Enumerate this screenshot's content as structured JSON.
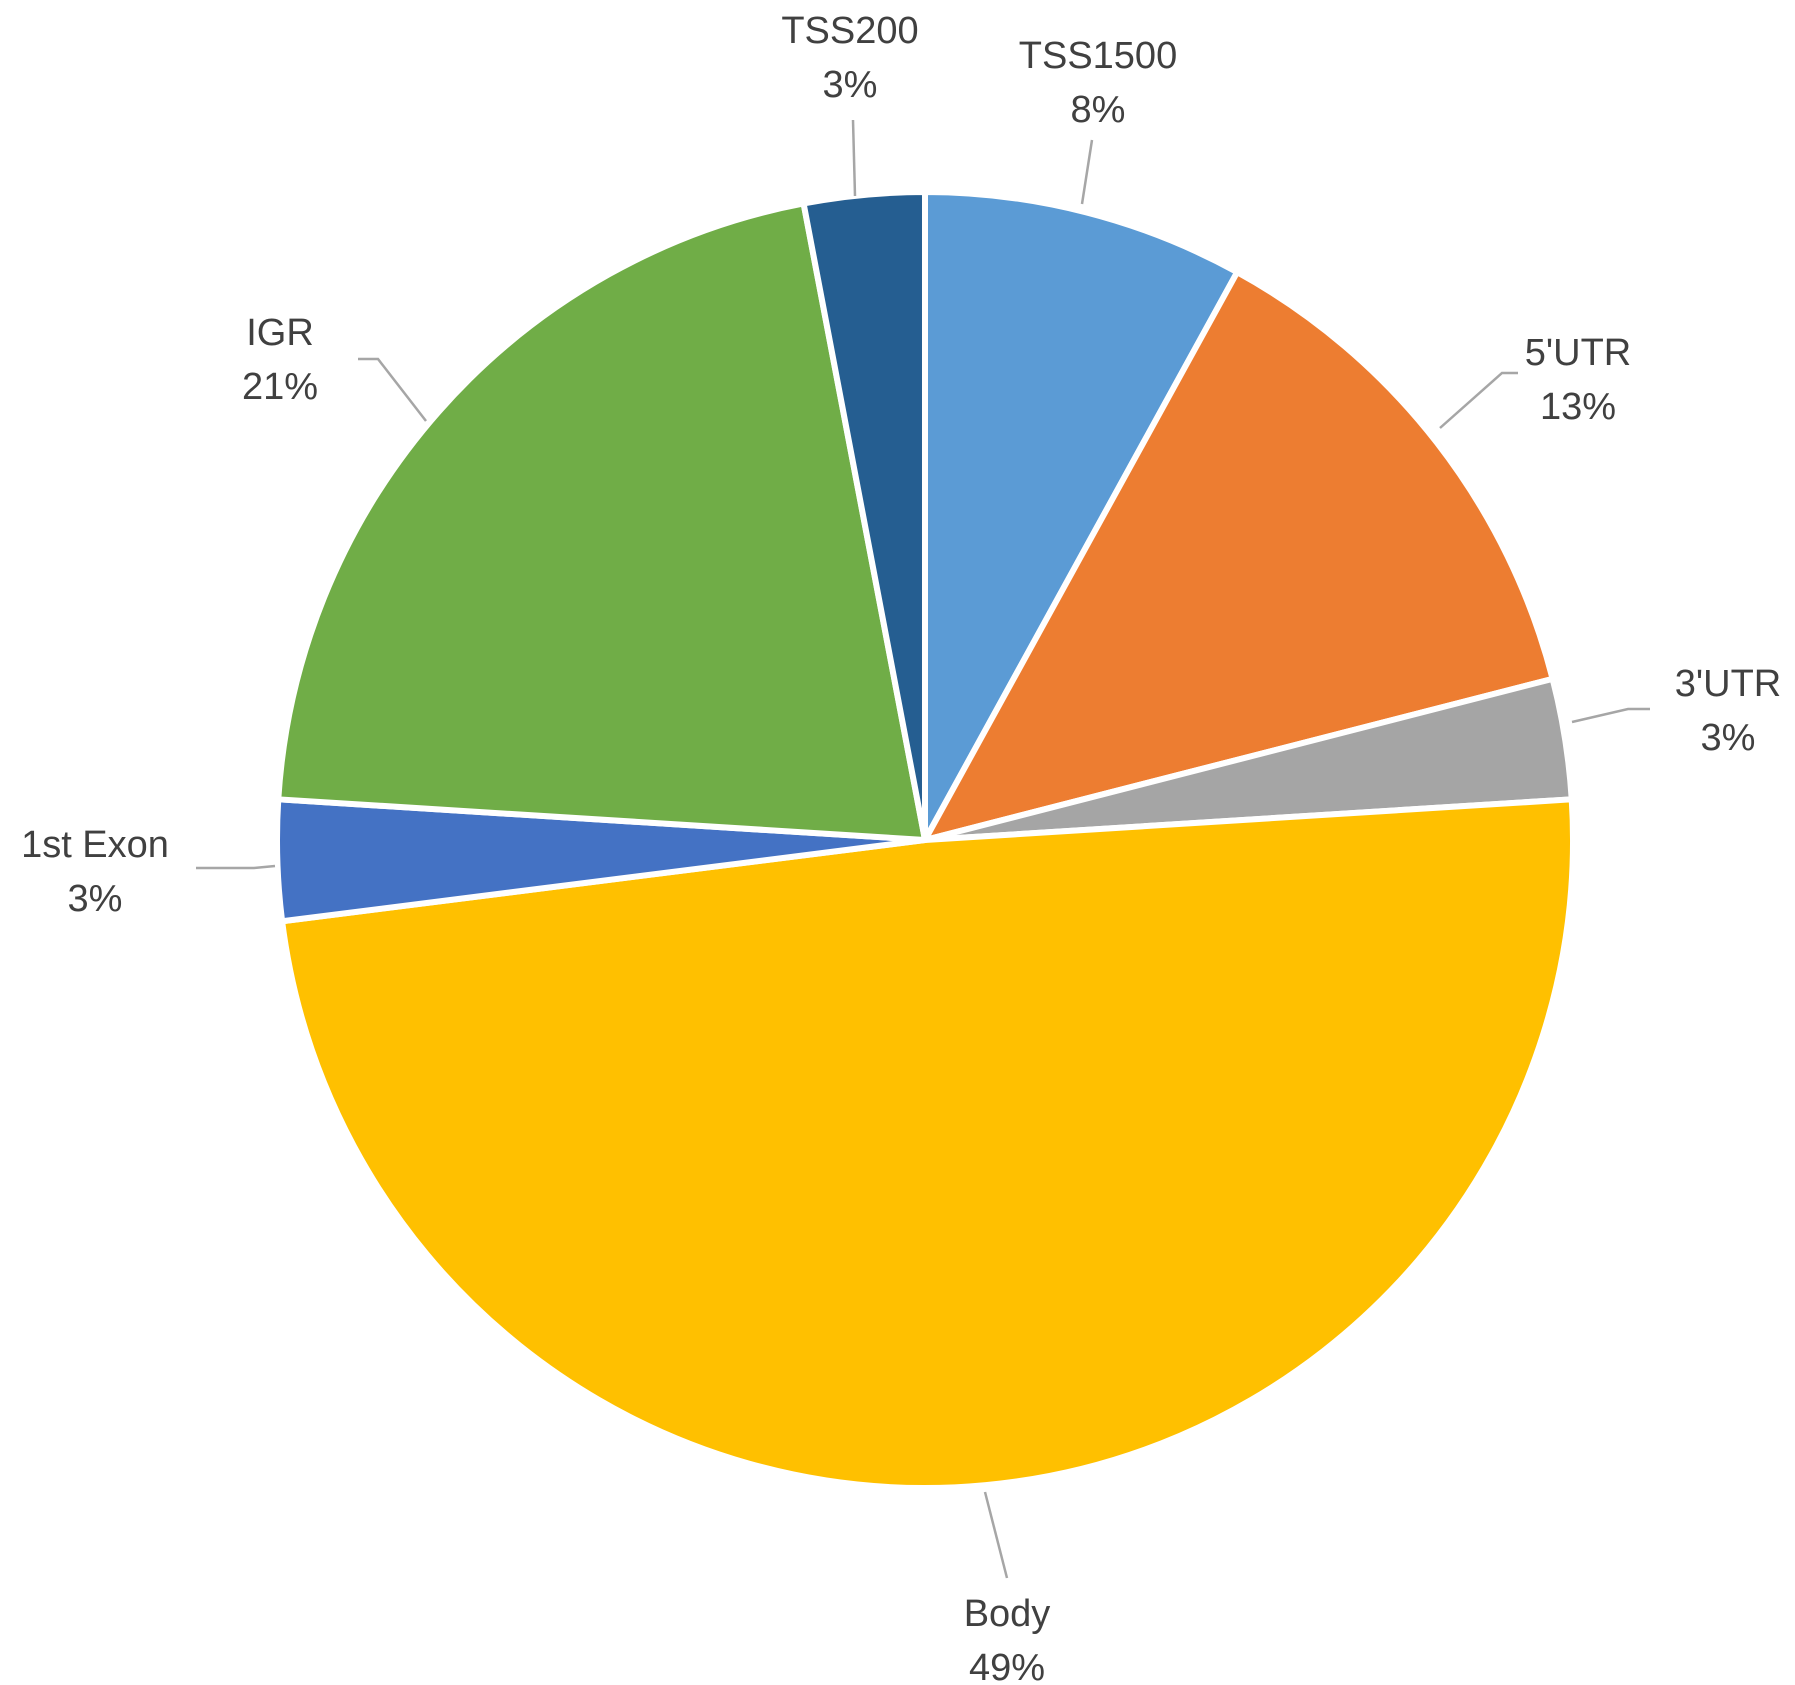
{
  "chart_data": {
    "type": "pie",
    "title": "",
    "slices": [
      {
        "label": "TSS1500",
        "value": 8,
        "value_label": "8%",
        "color": "#5b9bd5"
      },
      {
        "label": "5'UTR",
        "value": 13,
        "value_label": "13%",
        "color": "#ed7d31"
      },
      {
        "label": "3'UTR",
        "value": 3,
        "value_label": "3%",
        "color": "#a5a5a5"
      },
      {
        "label": "Body",
        "value": 49,
        "value_label": "49%",
        "color": "#ffc000"
      },
      {
        "label": "1st Exon",
        "value": 3,
        "value_label": "3%",
        "color": "#4472c4"
      },
      {
        "label": "IGR",
        "value": 21,
        "value_label": "21%",
        "color": "#70ad47"
      },
      {
        "label": "TSS200",
        "value": 3,
        "value_label": "3%",
        "color": "#255e91"
      }
    ],
    "start_angle": "12 o'clock",
    "direction": "clockwise",
    "legend": "none",
    "labels": "outside with leader lines"
  }
}
